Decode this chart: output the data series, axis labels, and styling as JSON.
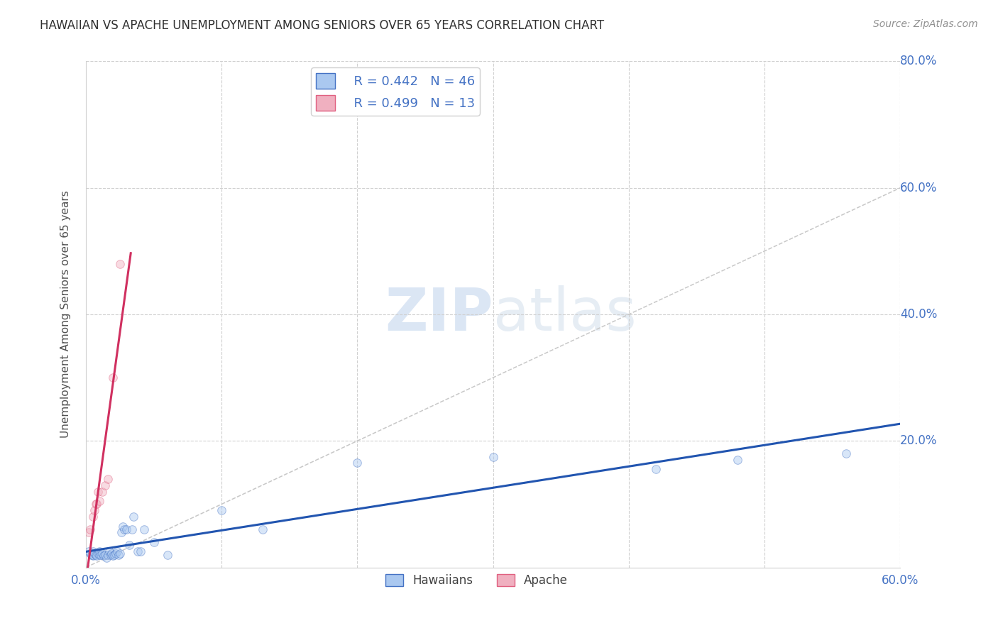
{
  "title": "HAWAIIAN VS APACHE UNEMPLOYMENT AMONG SENIORS OVER 65 YEARS CORRELATION CHART",
  "source": "Source: ZipAtlas.com",
  "ylabel": "Unemployment Among Seniors over 65 years",
  "watermark_zip": "ZIP",
  "watermark_atlas": "atlas",
  "xlim": [
    0.0,
    0.6
  ],
  "ylim": [
    0.0,
    0.8
  ],
  "xtick_positions": [
    0.0,
    0.1,
    0.2,
    0.3,
    0.4,
    0.5,
    0.6
  ],
  "xtick_labels": [
    "0.0%",
    "",
    "",
    "",
    "",
    "",
    "60.0%"
  ],
  "ytick_positions": [
    0.0,
    0.2,
    0.4,
    0.6,
    0.8
  ],
  "ytick_labels": [
    "",
    "20.0%",
    "40.0%",
    "60.0%",
    "80.0%"
  ],
  "hawaiian_fill_color": "#aac8f0",
  "hawaiian_edge_color": "#4472c4",
  "apache_fill_color": "#f0b0c0",
  "apache_edge_color": "#e06080",
  "hawaiian_line_color": "#2255b0",
  "apache_line_color": "#d03060",
  "diagonal_color": "#c8c8c8",
  "tick_color": "#4472c4",
  "legend_r_hawaiian": "R = 0.442",
  "legend_n_hawaiian": "N = 46",
  "legend_r_apache": "R = 0.499",
  "legend_n_apache": "N = 13",
  "hawaiians_x": [
    0.002,
    0.003,
    0.004,
    0.005,
    0.005,
    0.005,
    0.006,
    0.007,
    0.008,
    0.009,
    0.01,
    0.01,
    0.011,
    0.012,
    0.013,
    0.014,
    0.015,
    0.016,
    0.017,
    0.018,
    0.019,
    0.02,
    0.021,
    0.022,
    0.023,
    0.024,
    0.025,
    0.026,
    0.027,
    0.028,
    0.03,
    0.032,
    0.034,
    0.035,
    0.038,
    0.04,
    0.043,
    0.05,
    0.06,
    0.1,
    0.13,
    0.2,
    0.3,
    0.42,
    0.48,
    0.56
  ],
  "hawaiians_y": [
    0.025,
    0.022,
    0.02,
    0.018,
    0.02,
    0.025,
    0.022,
    0.02,
    0.018,
    0.022,
    0.02,
    0.025,
    0.02,
    0.022,
    0.018,
    0.02,
    0.015,
    0.02,
    0.025,
    0.02,
    0.022,
    0.018,
    0.02,
    0.022,
    0.025,
    0.02,
    0.022,
    0.055,
    0.065,
    0.06,
    0.06,
    0.035,
    0.06,
    0.08,
    0.025,
    0.025,
    0.06,
    0.04,
    0.02,
    0.09,
    0.06,
    0.165,
    0.175,
    0.155,
    0.17,
    0.18
  ],
  "apache_x": [
    0.002,
    0.003,
    0.005,
    0.006,
    0.007,
    0.008,
    0.009,
    0.01,
    0.012,
    0.014,
    0.016,
    0.02,
    0.025
  ],
  "apache_y": [
    0.055,
    0.06,
    0.08,
    0.09,
    0.1,
    0.1,
    0.12,
    0.105,
    0.12,
    0.13,
    0.14,
    0.3,
    0.48
  ],
  "marker_size": 70,
  "alpha": 0.45,
  "hawaiian_trendline_x": [
    0.0,
    0.6
  ],
  "apache_trendline_x": [
    0.0,
    0.033
  ]
}
